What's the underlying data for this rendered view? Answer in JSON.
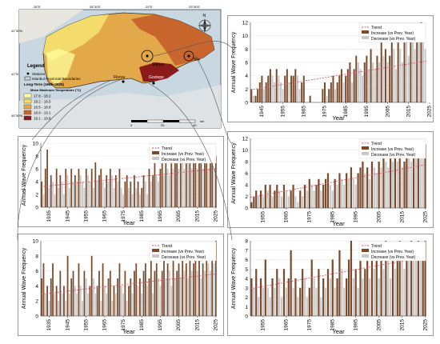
{
  "colors": {
    "increase": "#7a4a2a",
    "decrease": "#c9c9c9",
    "trend": "#d9536f",
    "map_sea": "#c9d7e0",
    "map_land_outer": "#e8e6e0"
  },
  "map": {
    "legend_title": "Legend",
    "stations_label": "Stations",
    "boundaries_label": "Istanbul Provincial Boundaries",
    "period_label": "Long-Term (1965–2025)",
    "temp_title": "Mean Maximum Temperature (°C)",
    "classes": [
      {
        "label": "17.8 - 18.2",
        "color": "#ffff9e"
      },
      {
        "label": "18.2 - 18.5",
        "color": "#f3dc6c"
      },
      {
        "label": "18.5 - 18.8",
        "color": "#e3a84a"
      },
      {
        "label": "18.8 - 19.1",
        "color": "#c8662e"
      },
      {
        "label": "19.1 - 19.8",
        "color": "#8b1a1a"
      }
    ],
    "lon_labels": [
      "28°E",
      "28°30'E",
      "29°E",
      "29°30'E"
    ],
    "lat_labels": [
      "41°30'N",
      "41°N",
      "40°30'N"
    ],
    "station_labels": [
      "Sariyer",
      "Sile",
      "Florya",
      "Goztepe"
    ],
    "scale_labels": [
      "0",
      "20",
      "40",
      "km"
    ],
    "north_label": "N"
  },
  "chart_data": [
    {
      "type": "bar",
      "ylabel": "Annual Wave Frequency",
      "xlabel": "Year",
      "legend": [
        "Trend",
        "Increase (vs Prev. Year)",
        "Decrease (vs Prev. Year)"
      ],
      "legend_position": "top-right",
      "grid": true,
      "x_start": 1940,
      "xticks": [
        "1945",
        "1955",
        "1965",
        "1975",
        "1985",
        "1995",
        "2005",
        "2015",
        "2025"
      ],
      "ylim": [
        0,
        12
      ],
      "yticks": [
        0,
        2,
        4,
        6,
        8,
        10,
        12
      ],
      "trend": [
        1.9,
        6.2
      ],
      "values": [
        2,
        1,
        1,
        2,
        3,
        4,
        2,
        3,
        4,
        5,
        4,
        3,
        5,
        4,
        3,
        2,
        4,
        5,
        3,
        4,
        4,
        5,
        4,
        2,
        3,
        4,
        0,
        0,
        1,
        0,
        0,
        0,
        0,
        0,
        2,
        3,
        1,
        2,
        3,
        4,
        2,
        3,
        4,
        5,
        3,
        4,
        5,
        6,
        3,
        5,
        7,
        6,
        5,
        4,
        6,
        7,
        5,
        8,
        6,
        5,
        7,
        6,
        9,
        7,
        8,
        6,
        7,
        10,
        8,
        5,
        9,
        8,
        6,
        10,
        9,
        7,
        11,
        9,
        8,
        10,
        9,
        12,
        9,
        8
      ]
    },
    {
      "type": "bar",
      "ylabel": "Annual Wave Frequency",
      "xlabel": "Year",
      "legend": [
        "Trend",
        "Increase (vs Prev. Year)",
        "Decrease (vs Prev. Year)"
      ],
      "legend_position": "top-right",
      "grid": true,
      "x_start": 1931,
      "xticks": [
        "1935",
        "1945",
        "1955",
        "1965",
        "1975",
        "1985",
        "1995",
        "2005",
        "2015",
        "2025"
      ],
      "ylim": [
        0,
        10
      ],
      "yticks": [
        0,
        2,
        4,
        6,
        8,
        10
      ],
      "trend": [
        3.2,
        6.0
      ],
      "values": [
        4,
        2,
        6,
        9,
        3,
        5,
        4,
        2,
        6,
        3,
        5,
        4,
        2,
        6,
        5,
        3,
        6,
        4,
        5,
        4,
        6,
        5,
        4,
        3,
        6,
        5,
        4,
        6,
        3,
        7,
        4,
        5,
        6,
        4,
        3,
        5,
        4,
        6,
        5,
        3,
        5,
        4,
        6,
        3,
        2,
        4,
        5,
        3,
        4,
        2,
        5,
        3,
        4,
        2,
        3,
        5,
        4,
        2,
        6,
        4,
        5,
        7,
        5,
        4,
        6,
        8,
        5,
        7,
        6,
        5,
        8,
        6,
        7,
        9,
        6,
        8,
        7,
        6,
        9,
        7,
        8,
        6,
        7,
        8,
        6,
        7,
        8,
        6,
        7,
        8,
        6,
        7,
        8,
        6,
        8
      ]
    },
    {
      "type": "bar",
      "ylabel": "Annual Wave Frequency",
      "xlabel": "Year",
      "legend": [
        "Trend",
        "Increase (vs Prev. Year)",
        "Decrease (vs Prev. Year)"
      ],
      "legend_position": "top-right",
      "grid": true,
      "x_start": 1931,
      "xticks": [
        "1935",
        "1945",
        "1955",
        "1965",
        "1975",
        "1985",
        "1995",
        "2005",
        "2015",
        "2025"
      ],
      "ylim": [
        0,
        10
      ],
      "yticks": [
        0,
        2,
        4,
        6,
        8,
        10
      ],
      "trend": [
        2.9,
        5.6
      ],
      "values": [
        5,
        7,
        3,
        4,
        2,
        5,
        7,
        3,
        4,
        2,
        6,
        3,
        4,
        2,
        8,
        3,
        5,
        6,
        4,
        3,
        7,
        4,
        2,
        6,
        5,
        3,
        4,
        8,
        5,
        3,
        4,
        6,
        2,
        7,
        4,
        3,
        5,
        6,
        2,
        4,
        3,
        5,
        7,
        4,
        3,
        6,
        2,
        4,
        5,
        3,
        6,
        7,
        4,
        5,
        3,
        6,
        7,
        4,
        5,
        8,
        3,
        6,
        7,
        5,
        4,
        6,
        8,
        5,
        7,
        6,
        4,
        8,
        5,
        6,
        7,
        5,
        9,
        6,
        7,
        5,
        8,
        6,
        7,
        9,
        6,
        8,
        5,
        7,
        6,
        8,
        7,
        6,
        8,
        7,
        10
      ]
    },
    {
      "type": "bar",
      "ylabel": "Annual Wave Frequency",
      "xlabel": "Year",
      "legend": [
        "Trend",
        "Increase (vs Prev. Year)",
        "Decrease (vs Prev. Year)"
      ],
      "legend_position": "top-right",
      "grid": true,
      "x_start": 1950,
      "xticks": [
        "1955",
        "1965",
        "1975",
        "1985",
        "1995",
        "2005",
        "2015",
        "2025"
      ],
      "ylim": [
        0,
        12
      ],
      "yticks": [
        0,
        2,
        4,
        6,
        8,
        10,
        12
      ],
      "trend": [
        1.8,
        7.5
      ],
      "values": [
        1,
        2,
        3,
        2,
        3,
        2,
        4,
        3,
        4,
        2,
        3,
        4,
        3,
        2,
        4,
        3,
        2,
        3,
        4,
        2,
        1,
        3,
        2,
        4,
        3,
        5,
        4,
        3,
        4,
        5,
        3,
        4,
        5,
        6,
        4,
        3,
        5,
        4,
        6,
        5,
        4,
        6,
        5,
        7,
        5,
        4,
        6,
        7,
        8,
        6,
        7,
        5,
        8,
        7,
        6,
        8,
        7,
        9,
        8,
        7,
        9,
        8,
        10,
        8,
        9,
        7,
        8,
        10,
        9,
        8,
        10,
        9,
        11,
        10,
        9,
        11
      ]
    },
    {
      "type": "bar",
      "ylabel": "Annual Wave Frequency",
      "xlabel": "Year",
      "legend": [
        "Trend",
        "Increase (vs Prev. Year)",
        "Decrease (vs Prev. Year)"
      ],
      "legend_position": "top-right",
      "grid": true,
      "x_start": 1950,
      "xticks": [
        "1955",
        "1965",
        "1975",
        "1985",
        "1995",
        "2005",
        "2015",
        "2025"
      ],
      "ylim": [
        0,
        8
      ],
      "yticks": [
        0,
        1,
        2,
        3,
        4,
        5,
        6,
        7,
        8
      ],
      "trend": [
        2.9,
        6.3
      ],
      "values": [
        4,
        3,
        5,
        2,
        4,
        3,
        6,
        3,
        2,
        4,
        3,
        5,
        4,
        2,
        5,
        3,
        4,
        7,
        3,
        4,
        2,
        3,
        5,
        4,
        2,
        3,
        6,
        4,
        3,
        5,
        2,
        4,
        3,
        5,
        4,
        6,
        3,
        4,
        7,
        5,
        3,
        4,
        6,
        8,
        4,
        5,
        3,
        6,
        4,
        5,
        7,
        4,
        6,
        5,
        7,
        4,
        6,
        5,
        8,
        6,
        4,
        7,
        5,
        6,
        8,
        7,
        5,
        7,
        6,
        8,
        7,
        6,
        8,
        7,
        7,
        8
      ]
    }
  ]
}
